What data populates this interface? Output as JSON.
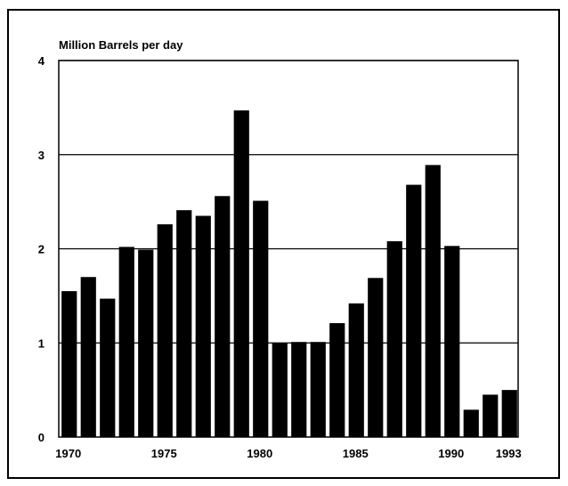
{
  "chart_data": {
    "type": "bar",
    "title": "",
    "xlabel": "",
    "ylabel": "Million Barrels per day",
    "ylim": [
      0,
      4
    ],
    "yticks": [
      0,
      1,
      2,
      3,
      4
    ],
    "grid": true,
    "categories": [
      "1970",
      "1971",
      "1972",
      "1973",
      "1974",
      "1975",
      "1976",
      "1977",
      "1978",
      "1979",
      "1980",
      "1981",
      "1982",
      "1983",
      "1984",
      "1985",
      "1986",
      "1987",
      "1988",
      "1989",
      "1990",
      "1991",
      "1992",
      "1993"
    ],
    "values": [
      1.55,
      1.7,
      1.47,
      2.02,
      1.99,
      2.26,
      2.41,
      2.35,
      2.56,
      3.47,
      2.51,
      1.0,
      1.01,
      1.01,
      1.21,
      1.42,
      1.69,
      2.08,
      2.68,
      2.89,
      2.03,
      0.29,
      0.45,
      0.5
    ],
    "xtick_labels": [
      "1970",
      "1975",
      "1980",
      "1985",
      "1990",
      "1993"
    ],
    "bar_color": "#000000"
  }
}
